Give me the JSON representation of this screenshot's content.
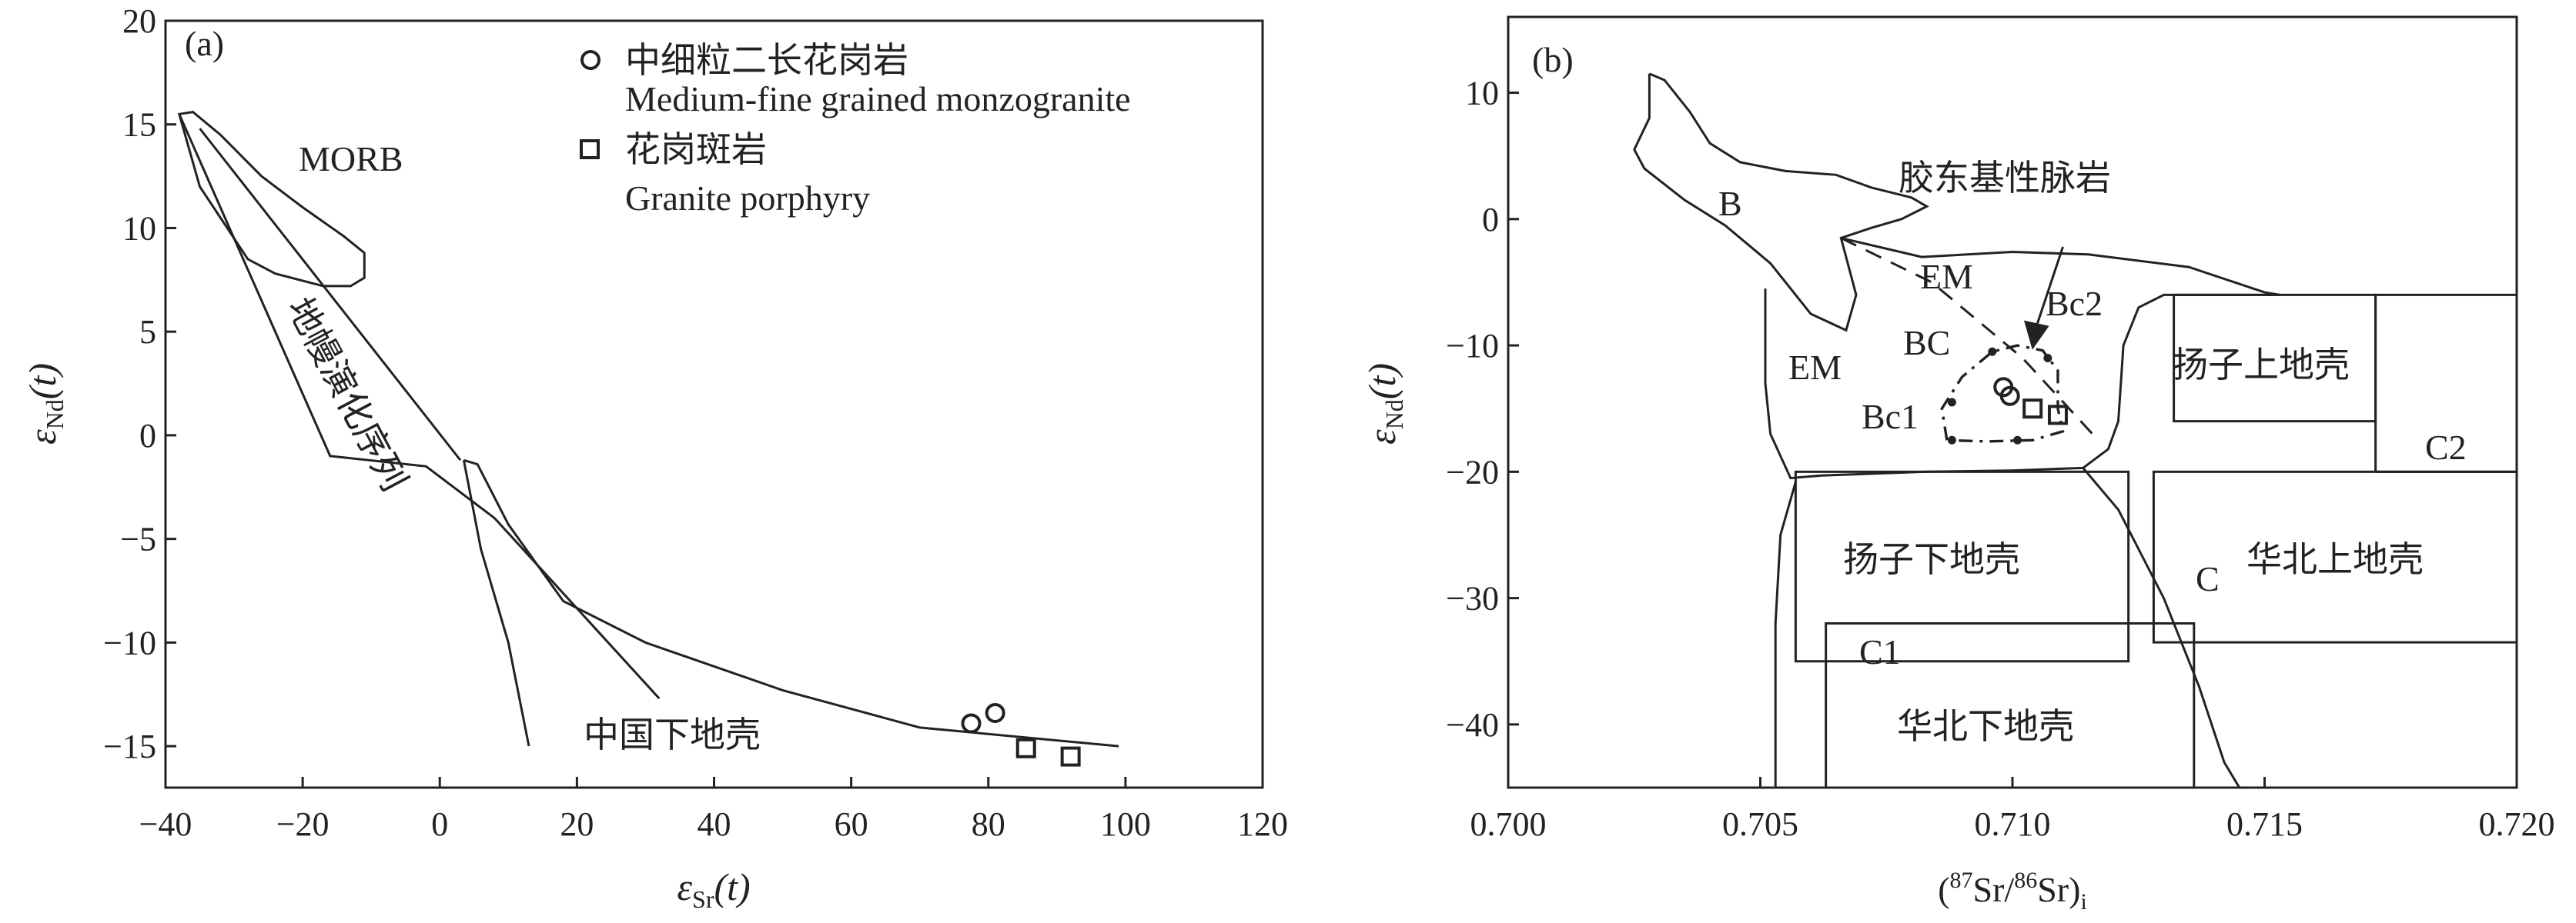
{
  "chart_data": [
    {
      "type": "scatter",
      "panel_label": "(a)",
      "xlabel": {
        "main": "ε",
        "sub": "Sr",
        "tail": "(t)"
      },
      "ylabel": {
        "main": "ε",
        "sub": "Nd",
        "tail": "(t)"
      },
      "xlim": [
        -40,
        120
      ],
      "ylim": [
        -17,
        20
      ],
      "xticks": [
        -40,
        -20,
        0,
        20,
        40,
        60,
        80,
        100,
        120
      ],
      "yticks": [
        20,
        15,
        10,
        5,
        0,
        -5,
        -10,
        -15
      ],
      "xticklabels": [
        "−40",
        "−20",
        "0",
        "20",
        "40",
        "60",
        "80",
        "100",
        "120"
      ],
      "yticklabels": [
        "20",
        "15",
        "10",
        "5",
        "0",
        "−5",
        "−10",
        "−15"
      ],
      "grid": false,
      "legend_position": "top-right",
      "series": [
        {
          "name": "中细粒二长花岗岩 Medium-fine grained monzogranite",
          "marker": "circle",
          "points": [
            [
              77.5,
              -13.9
            ],
            [
              81,
              -13.4
            ]
          ]
        },
        {
          "name": "花岗斑岩 Granite porphyry",
          "marker": "square",
          "points": [
            [
              85.5,
              -15.1
            ],
            [
              92,
              -15.5
            ]
          ]
        }
      ],
      "legend": [
        {
          "marker": "circle",
          "label_zh": "中细粒二长花岗岩",
          "label_en": "Medium-fine grained monzogranite"
        },
        {
          "marker": "square",
          "label_zh": "花岗斑岩",
          "label_en": "Granite porphyry"
        }
      ],
      "annotations": {
        "morb": "MORB",
        "mantle_array": "地幔演化序列",
        "lower_crust": "中国下地壳"
      },
      "outlines": {
        "morb_field": [
          [
            -38,
            15.5
          ],
          [
            -36,
            15.6
          ],
          [
            -32,
            14.5
          ],
          [
            -26,
            12.5
          ],
          [
            -20,
            11
          ],
          [
            -14,
            9.6
          ],
          [
            -11,
            8.8
          ],
          [
            -11,
            7.6
          ],
          [
            -13,
            7.2
          ],
          [
            -17,
            7.2
          ],
          [
            -24,
            7.8
          ],
          [
            -28,
            8.5
          ],
          [
            -32,
            10.5
          ],
          [
            -35,
            12
          ],
          [
            -38,
            15.5
          ]
        ],
        "mantle_array": [
          [
            -38,
            15.5
          ],
          [
            -16,
            -1
          ],
          [
            -2,
            -1.5
          ],
          [
            8,
            -4
          ],
          [
            32,
            -12.7
          ]
        ],
        "lower_crust_field": [
          [
            3.5,
            -1.2
          ],
          [
            5.5,
            -1.4
          ],
          [
            10,
            -4.3
          ],
          [
            18,
            -8
          ],
          [
            30,
            -10
          ],
          [
            50,
            -12.3
          ],
          [
            70,
            -14.1
          ],
          [
            99,
            -15
          ]
        ],
        "lower_crust_lower": [
          [
            3.5,
            -1.2
          ],
          [
            6,
            -5.5
          ],
          [
            10,
            -10
          ],
          [
            13,
            -15
          ]
        ]
      }
    },
    {
      "type": "scatter",
      "panel_label": "(b)",
      "xlabel": {
        "pre": "(",
        "sup1": "87",
        "mid": "Sr/",
        "sup2": "86",
        "tail": "Sr)",
        "sub": "i"
      },
      "ylabel": {
        "main": "ε",
        "sub": "Nd",
        "tail": "(t)"
      },
      "xlim": [
        0.7,
        0.72
      ],
      "ylim": [
        -45,
        16
      ],
      "xticks": [
        0.7,
        0.705,
        0.71,
        0.715,
        0.72
      ],
      "yticks": [
        10,
        0,
        -10,
        -20,
        -30,
        -40
      ],
      "xticklabels": [
        "0.700",
        "0.705",
        "0.710",
        "0.715",
        "0.720"
      ],
      "yticklabels": [
        "10",
        "0",
        "−10",
        "−20",
        "−30",
        "−40"
      ],
      "grid": false,
      "series": [
        {
          "name": "中细粒二长花岗岩 Medium-fine grained monzogranite",
          "marker": "circle",
          "points": [
            [
              0.70995,
              -14
            ],
            [
              0.70982,
              -13.3
            ]
          ]
        },
        {
          "name": "花岗斑岩 Granite porphyry",
          "marker": "square",
          "points": [
            [
              0.7104,
              -15
            ],
            [
              0.7109,
              -15.5
            ]
          ]
        }
      ],
      "dots": [
        [
          0.7088,
          -17.5
        ],
        [
          0.7101,
          -17.5
        ],
        [
          0.7088,
          -14.5
        ],
        [
          0.7096,
          -10.5
        ],
        [
          0.7107,
          -11
        ]
      ],
      "annotations": {
        "b": "B",
        "em_upper": "EM",
        "em_lower": "EM",
        "bc": "BC",
        "bc1": "Bc1",
        "bc2": "Bc2",
        "c": "C",
        "c1": "C1",
        "c2": "C2",
        "mafic_dykes": "胶东基性脉岩",
        "yangtze_upper": "扬子上地壳",
        "yangtze_lower": "扬子下地壳",
        "north_china_upper": "华北上地壳",
        "north_china_lower": "华北下地壳"
      },
      "boxes": {
        "yangtze_upper": [
          0.7132,
          0.7172,
          -16,
          -6
        ],
        "yangtze_lower": [
          0.7057,
          0.7123,
          -35,
          -20
        ],
        "north_china_upper": [
          0.7128,
          0.72,
          -33.5,
          -20
        ],
        "north_china_lower": [
          0.7063,
          0.7136,
          -45,
          -32
        ],
        "c2_frame": [
          0.7172,
          0.72,
          -20,
          -6
        ]
      }
    }
  ]
}
